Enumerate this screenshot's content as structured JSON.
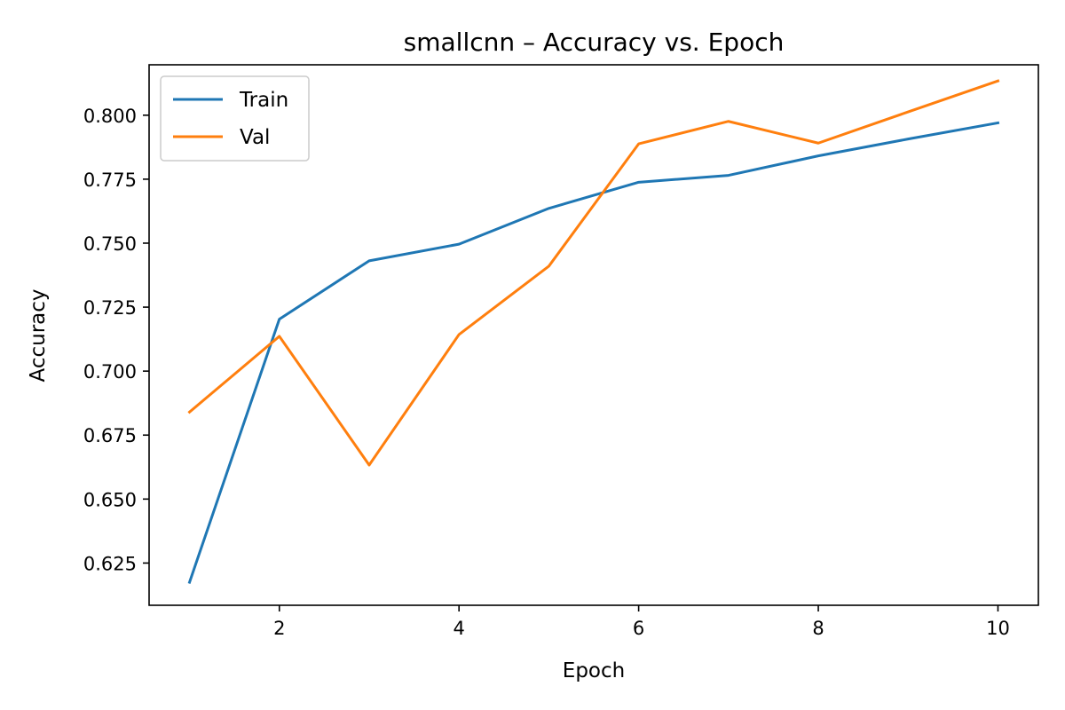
{
  "chart_data": {
    "type": "line",
    "title": "smallcnn – Accuracy vs. Epoch",
    "xlabel": "Epoch",
    "ylabel": "Accuracy",
    "x": [
      1,
      2,
      3,
      4,
      5,
      6,
      7,
      8,
      9,
      10
    ],
    "xlim": [
      0.55,
      10.45
    ],
    "ylim": [
      0.6085,
      0.8197
    ],
    "x_ticks": [
      2,
      4,
      6,
      8,
      10
    ],
    "x_tick_labels": [
      "2",
      "4",
      "6",
      "8",
      "10"
    ],
    "y_ticks": [
      0.625,
      0.65,
      0.675,
      0.7,
      0.725,
      0.75,
      0.775,
      0.8
    ],
    "y_tick_labels": [
      "0.625",
      "0.650",
      "0.675",
      "0.700",
      "0.725",
      "0.750",
      "0.775",
      "0.800"
    ],
    "grid": false,
    "legend": "top-left",
    "series": [
      {
        "name": "Train",
        "color": "#1f77b4",
        "values": [
          0.6175,
          0.7203,
          0.7431,
          0.7496,
          0.7636,
          0.7738,
          0.7765,
          0.7841,
          0.7907,
          0.797
        ]
      },
      {
        "name": "Val",
        "color": "#ff7f0e",
        "values": [
          0.684,
          0.7136,
          0.6633,
          0.7143,
          0.741,
          0.7888,
          0.7976,
          0.7891,
          0.8013,
          0.8134
        ]
      }
    ]
  }
}
